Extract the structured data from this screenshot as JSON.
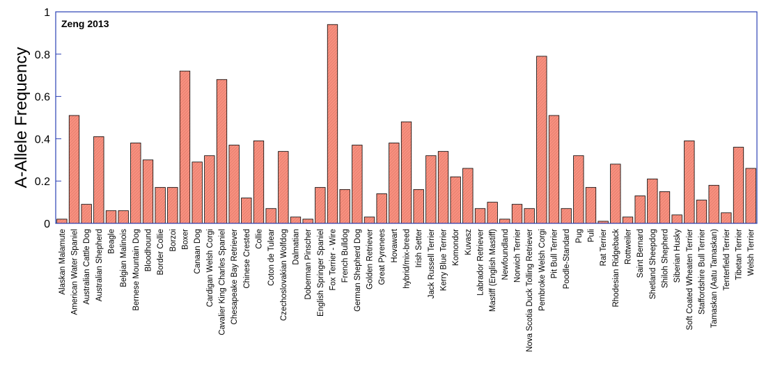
{
  "chart_data": {
    "type": "bar",
    "title": "",
    "annotation": "Zeng 2013",
    "xlabel": "",
    "ylabel": "A-Allele Frequency",
    "ylim": [
      0,
      1
    ],
    "yticks": [
      "0",
      "0.2",
      "0.4",
      "0.6",
      "0.8",
      "1"
    ],
    "grid": false,
    "bar_color": "#f7907f",
    "frame_color": "#2a3fb3",
    "categories": [
      "Alaskan Malamute",
      "American Water Spaniel",
      "Australian Cattle Dog",
      "Australian Shepherd",
      "Beagle",
      "Belgian Malinois",
      "Bernese Mountain Dog",
      "Bloodhound",
      "Border Collie",
      "Borzoi",
      "Boxer",
      "Canaan Dog",
      "Cardigan Welsh Corgi",
      "Cavalier King Charles Spaniel",
      "Chesapeake Bay Retriever",
      "Chinese Crested",
      "Collie",
      "Coton de Tulear",
      "Czechoslovakian Wolfdog",
      "Dalmatian",
      "Doberman Pinscher",
      "English Springer Spaniel",
      "Fox Terrier - Wire",
      "French Bulldog",
      "German Shepherd Dog",
      "Golden Retriever",
      "Great Pyrenees",
      "Hovawart",
      "hybrid/mix-breed",
      "Irish Setter",
      "Jack Russell Terrier",
      "Kerry Blue Terrier",
      "Komondor",
      "Kuvasz",
      "Labrador Retriever",
      "Mastiff (English Mastiff)",
      "Newfoundland",
      "Norwich Terrier",
      "Nova Scotia Duck Tolling Retriever",
      "Pembroke Welsh Corgi",
      "Pit Bull Terrier",
      "Poodle-Standard",
      "Pug",
      "Puli",
      "Rat Terrier",
      "Rhodesian Ridgeback",
      "Rottweiler",
      "Saint Bernard",
      "Shetland Sheepdog",
      "Shiloh Shepherd",
      "Siberian Husky",
      "Soft Coated Wheaten Terrier",
      "Staffordshire Bull Terrier",
      "Tamaskan (Aatu Tamaskan)",
      "Tenterfield Terrier",
      "Tibetan Terrier",
      "Welsh Terrier"
    ],
    "values": [
      0.02,
      0.51,
      0.09,
      0.41,
      0.06,
      0.06,
      0.38,
      0.3,
      0.17,
      0.17,
      0.72,
      0.29,
      0.32,
      0.68,
      0.37,
      0.12,
      0.39,
      0.07,
      0.34,
      0.03,
      0.02,
      0.17,
      0.94,
      0.16,
      0.37,
      0.03,
      0.14,
      0.38,
      0.48,
      0.16,
      0.32,
      0.34,
      0.22,
      0.26,
      0.07,
      0.1,
      0.02,
      0.09,
      0.07,
      0.79,
      0.51,
      0.07,
      0.32,
      0.17,
      0.01,
      0.28,
      0.03,
      0.13,
      0.21,
      0.15,
      0.04,
      0.39,
      0.11,
      0.18,
      0.05,
      0.36,
      0.26
    ]
  }
}
